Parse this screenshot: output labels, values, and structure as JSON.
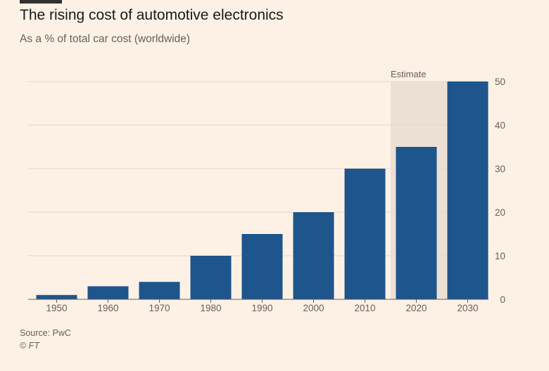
{
  "chart_data": {
    "type": "bar",
    "title": "The rising cost of automotive electronics",
    "subtitle": "As a % of total car cost (worldwide)",
    "categories": [
      "1950",
      "1960",
      "1970",
      "1980",
      "1990",
      "2000",
      "2010",
      "2020",
      "2030"
    ],
    "values": [
      1,
      3,
      4,
      10,
      15,
      20,
      30,
      35,
      50
    ],
    "ylim": [
      0,
      50
    ],
    "yticks": [
      0,
      10,
      20,
      30,
      40,
      50
    ],
    "y_axis_side": "right",
    "grid": true,
    "estimate": {
      "label": "Estimate",
      "from_category": "2020"
    },
    "colors": {
      "bar": "#1e558c",
      "background": "#fdf1e5",
      "estimate_band": "#ece0d5",
      "gridline": "#e4d8cc",
      "axis": "#66605c"
    }
  },
  "footer": {
    "source": "Source: PwC",
    "copyright": "© FT"
  }
}
